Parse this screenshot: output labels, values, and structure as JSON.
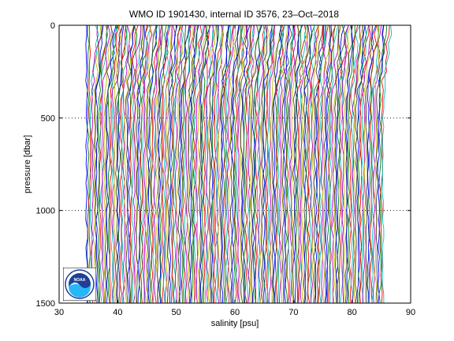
{
  "chart_data": {
    "type": "line",
    "title": "WMO ID 1901430, internal ID 3576, 23–Oct–2018",
    "xlabel": "salinity [psu]",
    "ylabel": "pressure [dbar]",
    "xlim": [
      30,
      90
    ],
    "ylim": [
      0,
      1500
    ],
    "y_reversed": true,
    "xticks": [
      "30",
      "40",
      "50",
      "60",
      "70",
      "80",
      "90"
    ],
    "yticks": [
      "0",
      "500",
      "1000",
      "1500"
    ],
    "grid": "y dotted",
    "profile_count": 200,
    "salinity_range": [
      34.7,
      85.3
    ],
    "salinity_step": 0.25,
    "series_colors": [
      "#0000ff",
      "#008000",
      "#ff0000",
      "#00bfbf",
      "#bf00bf",
      "#bfbf00",
      "#404040"
    ]
  },
  "logo": {
    "text": "NOAA",
    "colors": {
      "ring": "#ffffff",
      "sky": "#1f3f96",
      "sea": "#29b6f6"
    }
  }
}
